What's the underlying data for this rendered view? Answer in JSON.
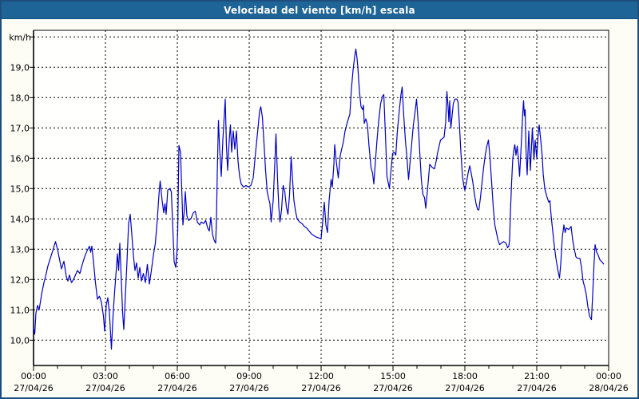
{
  "window": {
    "title": "Velocidad del viento [km/h] escala"
  },
  "colors": {
    "titlebar_bg": "#1e6496",
    "titlebar_text": "#ffffff",
    "window_border": "#1d4e7e",
    "page_bg": "#fdfdf6",
    "plot_bg": "#fffffd",
    "line": "#0000c8",
    "grid": "#000000",
    "text": "#000000"
  },
  "chart_data": {
    "type": "line",
    "title": "Velocidad del viento [km/h] escala",
    "ylabel": "km/h",
    "y_unit_label": "km/h",
    "ylim": [
      9.2,
      20.2
    ],
    "xlim_hours": [
      0,
      24
    ],
    "grid": "dashed",
    "legend_position": "none",
    "x_minor_tick_every_hours": 1,
    "x_major_tick_every_hours": 3,
    "y_gridline_values": [
      10,
      11,
      12,
      13,
      14,
      15,
      16,
      17,
      18,
      19,
      20
    ],
    "y_ticks": [
      {
        "value": 19,
        "label": "19,0"
      },
      {
        "value": 18,
        "label": "18,0"
      },
      {
        "value": 17,
        "label": "17,0"
      },
      {
        "value": 16,
        "label": "16,0"
      },
      {
        "value": 15,
        "label": "15,0"
      },
      {
        "value": 14,
        "label": "14,0"
      },
      {
        "value": 13,
        "label": "13,0"
      },
      {
        "value": 12,
        "label": "12,0"
      },
      {
        "value": 11,
        "label": "11,0"
      },
      {
        "value": 10,
        "label": "10,0"
      }
    ],
    "x_major_ticks": [
      {
        "hour": 0,
        "time": "00:00",
        "date": "27/04/26"
      },
      {
        "hour": 3,
        "time": "03:00",
        "date": "27/04/26"
      },
      {
        "hour": 6,
        "time": "06:00",
        "date": "27/04/26"
      },
      {
        "hour": 9,
        "time": "09:00",
        "date": "27/04/26"
      },
      {
        "hour": 12,
        "time": "12:00",
        "date": "27/04/26"
      },
      {
        "hour": 15,
        "time": "15:00",
        "date": "27/04/26"
      },
      {
        "hour": 18,
        "time": "18:00",
        "date": "27/04/26"
      },
      {
        "hour": 21,
        "time": "21:00",
        "date": "27/04/26"
      },
      {
        "hour": 24,
        "time": "00:00",
        "date": "28/04/26"
      }
    ],
    "series_name": "Velocidad del viento",
    "points_format": "[minutes_since_00:00, km/h]",
    "points": [
      [
        0,
        10.4
      ],
      [
        3,
        10.2
      ],
      [
        6,
        10.9
      ],
      [
        10,
        11.15
      ],
      [
        14,
        11.0
      ],
      [
        20,
        11.5
      ],
      [
        26,
        11.9
      ],
      [
        30,
        12.1
      ],
      [
        36,
        12.45
      ],
      [
        42,
        12.7
      ],
      [
        48,
        12.95
      ],
      [
        55,
        13.25
      ],
      [
        60,
        13.0
      ],
      [
        66,
        12.6
      ],
      [
        70,
        12.35
      ],
      [
        76,
        12.6
      ],
      [
        82,
        12.1
      ],
      [
        86,
        11.95
      ],
      [
        90,
        12.15
      ],
      [
        95,
        11.9
      ],
      [
        100,
        12.0
      ],
      [
        105,
        12.15
      ],
      [
        110,
        12.3
      ],
      [
        116,
        12.2
      ],
      [
        122,
        12.5
      ],
      [
        128,
        12.75
      ],
      [
        134,
        12.95
      ],
      [
        140,
        13.1
      ],
      [
        143,
        12.9
      ],
      [
        146,
        13.1
      ],
      [
        150,
        12.6
      ],
      [
        155,
        11.9
      ],
      [
        160,
        11.35
      ],
      [
        165,
        11.45
      ],
      [
        170,
        11.25
      ],
      [
        175,
        10.8
      ],
      [
        178,
        10.3
      ],
      [
        182,
        11.15
      ],
      [
        186,
        11.4
      ],
      [
        190,
        10.9
      ],
      [
        195,
        9.7
      ],
      [
        199,
        10.8
      ],
      [
        203,
        11.6
      ],
      [
        207,
        12.3
      ],
      [
        210,
        12.85
      ],
      [
        213,
        12.3
      ],
      [
        216,
        13.2
      ],
      [
        220,
        11.9
      ],
      [
        223,
        10.9
      ],
      [
        226,
        10.35
      ],
      [
        230,
        11.5
      ],
      [
        234,
        12.6
      ],
      [
        238,
        13.85
      ],
      [
        242,
        14.15
      ],
      [
        246,
        13.5
      ],
      [
        250,
        12.8
      ],
      [
        254,
        12.3
      ],
      [
        258,
        12.55
      ],
      [
        262,
        12.05
      ],
      [
        266,
        12.4
      ],
      [
        270,
        11.95
      ],
      [
        275,
        12.2
      ],
      [
        280,
        11.9
      ],
      [
        285,
        12.5
      ],
      [
        290,
        11.85
      ],
      [
        295,
        12.3
      ],
      [
        300,
        12.8
      ],
      [
        305,
        13.2
      ],
      [
        310,
        14.0
      ],
      [
        314,
        14.8
      ],
      [
        317,
        15.25
      ],
      [
        322,
        14.6
      ],
      [
        326,
        14.2
      ],
      [
        329,
        14.5
      ],
      [
        332,
        14.15
      ],
      [
        336,
        14.95
      ],
      [
        341,
        15.0
      ],
      [
        345,
        14.9
      ],
      [
        349,
        13.6
      ],
      [
        352,
        12.6
      ],
      [
        356,
        12.4
      ],
      [
        359,
        12.9
      ],
      [
        361,
        13.6
      ],
      [
        364,
        16.42
      ],
      [
        368,
        16.2
      ],
      [
        371,
        15.0
      ],
      [
        374,
        13.8
      ],
      [
        377,
        14.2
      ],
      [
        380,
        14.9
      ],
      [
        384,
        14.1
      ],
      [
        388,
        13.95
      ],
      [
        394,
        14.0
      ],
      [
        400,
        14.2
      ],
      [
        405,
        14.25
      ],
      [
        410,
        13.9
      ],
      [
        416,
        13.8
      ],
      [
        420,
        13.9
      ],
      [
        426,
        13.85
      ],
      [
        431,
        13.95
      ],
      [
        436,
        13.7
      ],
      [
        440,
        13.6
      ],
      [
        444,
        14.05
      ],
      [
        448,
        13.5
      ],
      [
        452,
        13.3
      ],
      [
        456,
        13.2
      ],
      [
        458,
        14.0
      ],
      [
        460,
        15.5
      ],
      [
        463,
        17.25
      ],
      [
        466,
        16.3
      ],
      [
        470,
        15.4
      ],
      [
        474,
        16.6
      ],
      [
        478,
        17.5
      ],
      [
        480,
        17.95
      ],
      [
        483,
        16.4
      ],
      [
        486,
        15.6
      ],
      [
        490,
        16.6
      ],
      [
        493,
        17.1
      ],
      [
        496,
        16.2
      ],
      [
        500,
        16.9
      ],
      [
        504,
        16.3
      ],
      [
        508,
        16.9
      ],
      [
        512,
        15.9
      ],
      [
        516,
        15.4
      ],
      [
        520,
        15.15
      ],
      [
        526,
        15.05
      ],
      [
        532,
        15.1
      ],
      [
        538,
        15.05
      ],
      [
        544,
        15.1
      ],
      [
        550,
        15.35
      ],
      [
        556,
        16.2
      ],
      [
        562,
        17.0
      ],
      [
        566,
        17.55
      ],
      [
        569,
        17.7
      ],
      [
        573,
        17.35
      ],
      [
        577,
        16.5
      ],
      [
        581,
        15.6
      ],
      [
        585,
        14.9
      ],
      [
        589,
        14.65
      ],
      [
        592,
        14.5
      ],
      [
        595,
        13.9
      ],
      [
        600,
        14.6
      ],
      [
        604,
        15.8
      ],
      [
        607,
        16.8
      ],
      [
        611,
        15.3
      ],
      [
        614,
        14.4
      ],
      [
        617,
        13.9
      ],
      [
        621,
        14.3
      ],
      [
        625,
        15.1
      ],
      [
        629,
        14.9
      ],
      [
        633,
        14.4
      ],
      [
        637,
        14.15
      ],
      [
        641,
        14.8
      ],
      [
        645,
        16.05
      ],
      [
        649,
        15.2
      ],
      [
        652,
        14.6
      ],
      [
        656,
        14.25
      ],
      [
        660,
        14.0
      ],
      [
        666,
        13.9
      ],
      [
        672,
        13.85
      ],
      [
        678,
        13.75
      ],
      [
        684,
        13.7
      ],
      [
        690,
        13.6
      ],
      [
        696,
        13.5
      ],
      [
        702,
        13.45
      ],
      [
        708,
        13.4
      ],
      [
        714,
        13.37
      ],
      [
        720,
        13.35
      ],
      [
        724,
        13.9
      ],
      [
        728,
        14.55
      ],
      [
        732,
        13.8
      ],
      [
        736,
        13.55
      ],
      [
        740,
        14.6
      ],
      [
        745,
        15.3
      ],
      [
        748,
        15.05
      ],
      [
        752,
        15.8
      ],
      [
        754,
        16.45
      ],
      [
        758,
        15.9
      ],
      [
        763,
        15.35
      ],
      [
        768,
        16.1
      ],
      [
        776,
        16.55
      ],
      [
        780,
        16.9
      ],
      [
        786,
        17.2
      ],
      [
        792,
        17.45
      ],
      [
        796,
        18.3
      ],
      [
        800,
        18.9
      ],
      [
        804,
        19.35
      ],
      [
        807,
        19.6
      ],
      [
        810,
        19.3
      ],
      [
        812,
        19.0
      ],
      [
        816,
        18.2
      ],
      [
        820,
        17.7
      ],
      [
        824,
        17.6
      ],
      [
        826,
        17.75
      ],
      [
        828,
        17.15
      ],
      [
        832,
        17.3
      ],
      [
        836,
        17.1
      ],
      [
        840,
        16.4
      ],
      [
        845,
        15.7
      ],
      [
        849,
        15.5
      ],
      [
        852,
        15.15
      ],
      [
        856,
        15.9
      ],
      [
        860,
        16.6
      ],
      [
        864,
        17.2
      ],
      [
        869,
        17.8
      ],
      [
        874,
        18.05
      ],
      [
        877,
        18.1
      ],
      [
        881,
        16.8
      ],
      [
        885,
        15.4
      ],
      [
        888,
        15.2
      ],
      [
        891,
        15.0
      ],
      [
        895,
        15.6
      ],
      [
        899,
        16.15
      ],
      [
        903,
        16.2
      ],
      [
        907,
        16.1
      ],
      [
        911,
        16.9
      ],
      [
        916,
        17.6
      ],
      [
        920,
        18.1
      ],
      [
        923,
        18.35
      ],
      [
        927,
        17.4
      ],
      [
        931,
        16.6
      ],
      [
        935,
        16.0
      ],
      [
        939,
        15.3
      ],
      [
        943,
        15.9
      ],
      [
        947,
        16.5
      ],
      [
        951,
        17.1
      ],
      [
        955,
        17.5
      ],
      [
        959,
        17.95
      ],
      [
        963,
        17.2
      ],
      [
        967,
        16.2
      ],
      [
        971,
        15.3
      ],
      [
        975,
        14.8
      ],
      [
        979,
        14.7
      ],
      [
        982,
        14.35
      ],
      [
        986,
        14.9
      ],
      [
        992,
        15.8
      ],
      [
        998,
        15.7
      ],
      [
        1004,
        15.65
      ],
      [
        1008,
        15.9
      ],
      [
        1012,
        16.2
      ],
      [
        1019,
        16.6
      ],
      [
        1024,
        16.65
      ],
      [
        1028,
        16.7
      ],
      [
        1032,
        17.2
      ],
      [
        1035,
        18.2
      ],
      [
        1038,
        17.7
      ],
      [
        1040,
        17.2
      ],
      [
        1042,
        17.9
      ],
      [
        1045,
        17.0
      ],
      [
        1048,
        17.4
      ],
      [
        1051,
        17.8
      ],
      [
        1055,
        17.95
      ],
      [
        1060,
        17.95
      ],
      [
        1063,
        17.85
      ],
      [
        1066,
        17.2
      ],
      [
        1070,
        16.2
      ],
      [
        1074,
        15.4
      ],
      [
        1078,
        15.05
      ],
      [
        1080,
        14.95
      ],
      [
        1084,
        15.2
      ],
      [
        1088,
        15.5
      ],
      [
        1092,
        15.75
      ],
      [
        1096,
        15.5
      ],
      [
        1100,
        15.2
      ],
      [
        1104,
        14.8
      ],
      [
        1108,
        14.5
      ],
      [
        1112,
        14.3
      ],
      [
        1115,
        14.3
      ],
      [
        1119,
        14.7
      ],
      [
        1123,
        15.2
      ],
      [
        1127,
        15.7
      ],
      [
        1131,
        16.1
      ],
      [
        1135,
        16.4
      ],
      [
        1139,
        16.6
      ],
      [
        1143,
        16.0
      ],
      [
        1147,
        15.2
      ],
      [
        1151,
        14.4
      ],
      [
        1155,
        13.8
      ],
      [
        1159,
        13.55
      ],
      [
        1163,
        13.3
      ],
      [
        1167,
        13.15
      ],
      [
        1171,
        13.2
      ],
      [
        1177,
        13.25
      ],
      [
        1183,
        13.2
      ],
      [
        1187,
        13.05
      ],
      [
        1190,
        13.1
      ],
      [
        1192,
        13.3
      ],
      [
        1194,
        14.2
      ],
      [
        1197,
        15.2
      ],
      [
        1200,
        16.0
      ],
      [
        1203,
        16.3
      ],
      [
        1205,
        16.45
      ],
      [
        1208,
        16.1
      ],
      [
        1211,
        16.4
      ],
      [
        1214,
        16.0
      ],
      [
        1217,
        15.4
      ],
      [
        1221,
        16.4
      ],
      [
        1225,
        17.5
      ],
      [
        1227,
        17.9
      ],
      [
        1229,
        17.4
      ],
      [
        1231,
        17.6
      ],
      [
        1233,
        16.3
      ],
      [
        1236,
        15.45
      ],
      [
        1240,
        16.9
      ],
      [
        1244,
        15.6
      ],
      [
        1249,
        17.0
      ],
      [
        1253,
        15.95
      ],
      [
        1256,
        16.6
      ],
      [
        1260,
        16.0
      ],
      [
        1263,
        16.7
      ],
      [
        1266,
        17.1
      ],
      [
        1270,
        16.6
      ],
      [
        1274,
        16.0
      ],
      [
        1276,
        15.5
      ],
      [
        1280,
        15.0
      ],
      [
        1285,
        14.75
      ],
      [
        1290,
        14.55
      ],
      [
        1293,
        14.6
      ],
      [
        1296,
        14.1
      ],
      [
        1300,
        13.6
      ],
      [
        1304,
        13.1
      ],
      [
        1308,
        12.7
      ],
      [
        1313,
        12.3
      ],
      [
        1317,
        12.05
      ],
      [
        1320,
        12.5
      ],
      [
        1324,
        13.4
      ],
      [
        1328,
        13.8
      ],
      [
        1331,
        13.55
      ],
      [
        1334,
        13.7
      ],
      [
        1340,
        13.65
      ],
      [
        1346,
        13.75
      ],
      [
        1350,
        13.3
      ],
      [
        1354,
        13.0
      ],
      [
        1358,
        12.75
      ],
      [
        1362,
        12.7
      ],
      [
        1368,
        12.7
      ],
      [
        1372,
        12.4
      ],
      [
        1376,
        11.95
      ],
      [
        1380,
        11.75
      ],
      [
        1384,
        11.5
      ],
      [
        1388,
        11.1
      ],
      [
        1392,
        10.8
      ],
      [
        1395,
        10.72
      ],
      [
        1397,
        10.68
      ],
      [
        1400,
        11.5
      ],
      [
        1403,
        12.4
      ],
      [
        1406,
        13.15
      ],
      [
        1410,
        12.9
      ],
      [
        1414,
        12.8
      ],
      [
        1418,
        12.65
      ],
      [
        1422,
        12.6
      ],
      [
        1428,
        12.5
      ]
    ]
  }
}
